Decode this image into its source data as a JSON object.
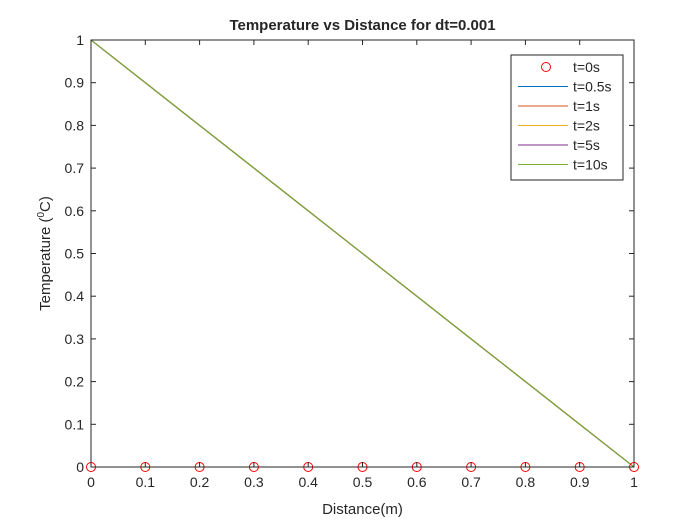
{
  "chart_data": {
    "type": "line",
    "title": "Temperature vs Distance for dt=0.001",
    "xlabel": "Distance(m)",
    "ylabel_main": "Temperature (",
    "ylabel_sup": "0",
    "ylabel_end": "C)",
    "xlim": [
      0,
      1
    ],
    "ylim": [
      0,
      1
    ],
    "xticks": [
      0,
      0.1,
      0.2,
      0.3,
      0.4,
      0.5,
      0.6,
      0.7,
      0.8,
      0.9,
      1
    ],
    "yticks": [
      0,
      0.1,
      0.2,
      0.3,
      0.4,
      0.5,
      0.6,
      0.7,
      0.8,
      0.9,
      1
    ],
    "xtick_labels": [
      "0",
      "0.1",
      "0.2",
      "0.3",
      "0.4",
      "0.5",
      "0.6",
      "0.7",
      "0.8",
      "0.9",
      "1"
    ],
    "ytick_labels": [
      "0",
      "0.1",
      "0.2",
      "0.3",
      "0.4",
      "0.5",
      "0.6",
      "0.7",
      "0.8",
      "0.9",
      "1"
    ],
    "grid": false,
    "legend_position": "top-right",
    "series": [
      {
        "name": "t=0s",
        "style": "markers",
        "marker": "circle",
        "color": "#ff0000",
        "x": [
          0,
          0.1,
          0.2,
          0.3,
          0.4,
          0.5,
          0.6,
          0.7,
          0.8,
          0.9,
          1
        ],
        "y": [
          0,
          0,
          0,
          0,
          0,
          0,
          0,
          0,
          0,
          0,
          0
        ]
      },
      {
        "name": "t=0.5s",
        "style": "line",
        "color": "#0072bd",
        "x": [
          0,
          0.1,
          0.2,
          0.3,
          0.4,
          0.5,
          0.6,
          0.7,
          0.8,
          0.9,
          1
        ],
        "y": [
          1,
          0.9,
          0.8,
          0.7,
          0.6,
          0.5,
          0.4,
          0.3,
          0.2,
          0.1,
          0
        ]
      },
      {
        "name": "t=1s",
        "style": "line",
        "color": "#d95319",
        "x": [
          0,
          0.1,
          0.2,
          0.3,
          0.4,
          0.5,
          0.6,
          0.7,
          0.8,
          0.9,
          1
        ],
        "y": [
          1,
          0.9,
          0.8,
          0.7,
          0.6,
          0.5,
          0.4,
          0.3,
          0.2,
          0.1,
          0
        ]
      },
      {
        "name": "t=2s",
        "style": "line",
        "color": "#edb120",
        "x": [
          0,
          0.1,
          0.2,
          0.3,
          0.4,
          0.5,
          0.6,
          0.7,
          0.8,
          0.9,
          1
        ],
        "y": [
          1,
          0.9,
          0.8,
          0.7,
          0.6,
          0.5,
          0.4,
          0.3,
          0.2,
          0.1,
          0
        ]
      },
      {
        "name": "t=5s",
        "style": "line",
        "color": "#7e2f8e",
        "x": [
          0,
          0.1,
          0.2,
          0.3,
          0.4,
          0.5,
          0.6,
          0.7,
          0.8,
          0.9,
          1
        ],
        "y": [
          1,
          0.9,
          0.8,
          0.7,
          0.6,
          0.5,
          0.4,
          0.3,
          0.2,
          0.1,
          0
        ]
      },
      {
        "name": "t=10s",
        "style": "line",
        "color": "#77ac30",
        "x": [
          0,
          0.1,
          0.2,
          0.3,
          0.4,
          0.5,
          0.6,
          0.7,
          0.8,
          0.9,
          1
        ],
        "y": [
          1,
          0.9,
          0.8,
          0.7,
          0.6,
          0.5,
          0.4,
          0.3,
          0.2,
          0.1,
          0
        ]
      }
    ]
  }
}
